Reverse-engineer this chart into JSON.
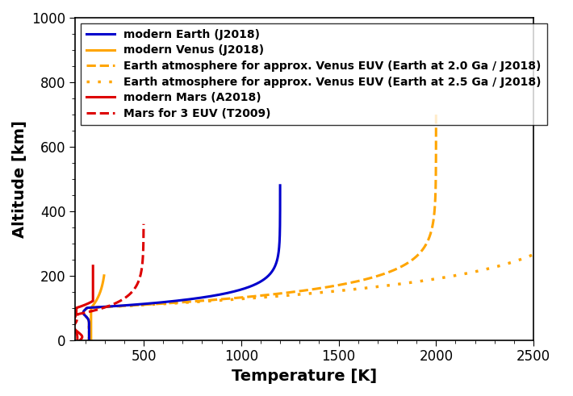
{
  "xlabel": "Temperature [K]",
  "ylabel": "Altitude [km]",
  "xlim": [
    150,
    2500
  ],
  "ylim": [
    0,
    1000
  ],
  "xticks": [
    500,
    1000,
    1500,
    2000,
    2500
  ],
  "yticks": [
    0,
    200,
    400,
    600,
    800,
    1000
  ],
  "legend_entries": [
    {
      "label": "modern Earth (J2018)",
      "color": "#0000cc",
      "ls": "-",
      "lw": 2.2
    },
    {
      "label": "modern Venus (J2018)",
      "color": "#ffa500",
      "ls": "-",
      "lw": 2.2
    },
    {
      "label": "Earth atmosphere for approx. Venus EUV (Earth at 2.0 Ga / J2018)",
      "color": "#ffa500",
      "ls": "--",
      "lw": 2.2
    },
    {
      "label": "Earth atmosphere for approx. Venus EUV (Earth at 2.5 Ga / J2018)",
      "color": "#ffa500",
      "ls": ":",
      "lw": 2.5
    },
    {
      "label": "modern Mars (A2018)",
      "color": "#dd0000",
      "ls": "-",
      "lw": 2.2
    },
    {
      "label": "Mars for 3 EUV (T2009)",
      "color": "#dd0000",
      "ls": "--",
      "lw": 2.2
    }
  ],
  "background_color": "#ffffff",
  "label_fontsize": 14,
  "tick_fontsize": 12,
  "legend_fontsize": 10
}
